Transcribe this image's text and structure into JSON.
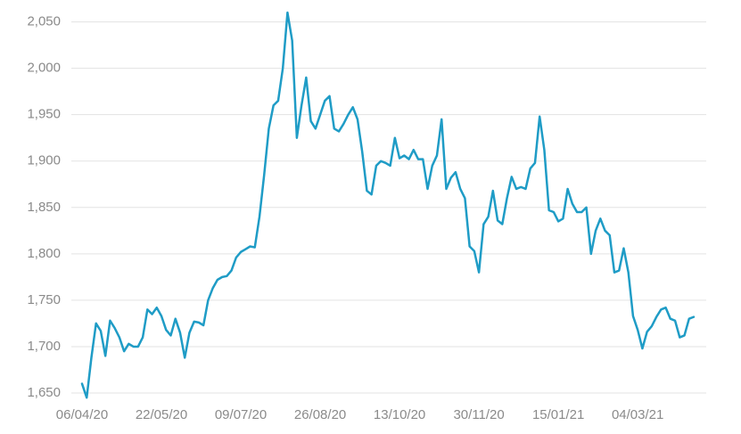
{
  "chart_data": {
    "type": "line",
    "categories": [
      "06/04/20",
      null,
      null,
      null,
      null,
      null,
      null,
      null,
      null,
      null,
      null,
      null,
      null,
      null,
      null,
      null,
      null,
      "22/05/20",
      null,
      null,
      null,
      null,
      null,
      null,
      null,
      null,
      null,
      null,
      null,
      null,
      null,
      null,
      null,
      null,
      "09/07/20",
      null,
      null,
      null,
      null,
      null,
      null,
      null,
      null,
      null,
      null,
      null,
      null,
      null,
      null,
      null,
      null,
      "26/08/20",
      null,
      null,
      null,
      null,
      null,
      null,
      null,
      null,
      null,
      null,
      null,
      null,
      null,
      null,
      null,
      null,
      "13/10/20",
      null,
      null,
      null,
      null,
      null,
      null,
      null,
      null,
      null,
      null,
      null,
      null,
      null,
      null,
      null,
      null,
      "30/11/20",
      null,
      null,
      null,
      null,
      null,
      null,
      null,
      null,
      null,
      null,
      null,
      null,
      null,
      null,
      null,
      null,
      "15/01/21",
      null,
      null,
      null,
      null,
      null,
      null,
      null,
      null,
      null,
      null,
      null,
      null,
      null,
      null,
      null,
      null,
      "04/03/21",
      null,
      null,
      null,
      null,
      null,
      null,
      null,
      null,
      null,
      null,
      null,
      null
    ],
    "series": [
      {
        "color": "#1f9cc6",
        "values": [
          1660,
          1645,
          1688,
          1725,
          1717,
          1690,
          1728,
          1720,
          1710,
          1695,
          1703,
          1700,
          1700,
          1710,
          1740,
          1735,
          1742,
          1733,
          1718,
          1712,
          1730,
          1715,
          1688,
          1715,
          1727,
          1726,
          1723,
          1750,
          1763,
          1772,
          1775,
          1776,
          1782,
          1796,
          1802,
          1805,
          1808,
          1807,
          1840,
          1885,
          1935,
          1960,
          1965,
          2000,
          2060,
          2030,
          1925,
          1960,
          1990,
          1943,
          1935,
          1950,
          1965,
          1970,
          1935,
          1932,
          1940,
          1950,
          1958,
          1945,
          1910,
          1868,
          1864,
          1895,
          1900,
          1898,
          1895,
          1925,
          1903,
          1906,
          1902,
          1912,
          1902,
          1902,
          1870,
          1895,
          1906,
          1945,
          1870,
          1882,
          1888,
          1870,
          1860,
          1808,
          1803,
          1780,
          1832,
          1840,
          1868,
          1836,
          1832,
          1860,
          1883,
          1870,
          1872,
          1870,
          1892,
          1898,
          1948,
          1912,
          1847,
          1845,
          1835,
          1838,
          1870,
          1854,
          1845,
          1845,
          1850,
          1800,
          1825,
          1838,
          1825,
          1820,
          1780,
          1782,
          1806,
          1780,
          1733,
          1718,
          1698,
          1716,
          1722,
          1732,
          1740,
          1742,
          1730,
          1728,
          1710,
          1712,
          1730,
          1732
        ]
      }
    ],
    "ylim": [
      1650,
      2064
    ],
    "yticks": [
      {
        "value": 1650,
        "label": "1,650"
      },
      {
        "value": 1700,
        "label": "1,700"
      },
      {
        "value": 1750,
        "label": "1,750"
      },
      {
        "value": 1800,
        "label": "1,800"
      },
      {
        "value": 1850,
        "label": "1,850"
      },
      {
        "value": 1900,
        "label": "1,900"
      },
      {
        "value": 1950,
        "label": "1,950"
      },
      {
        "value": 2000,
        "label": "2,000"
      },
      {
        "value": 2050,
        "label": "2,050"
      }
    ],
    "grid": true
  }
}
